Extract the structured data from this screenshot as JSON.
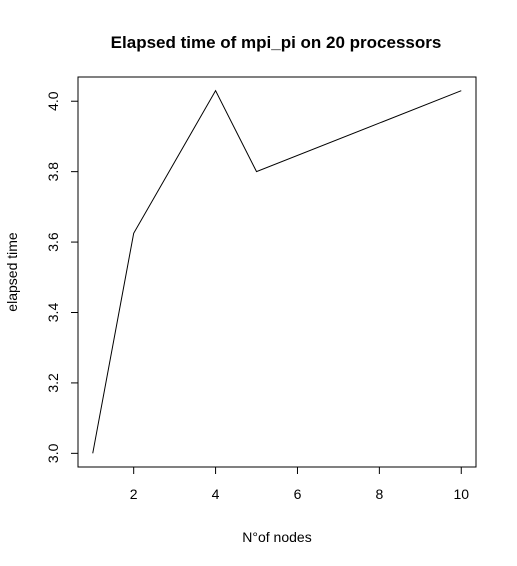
{
  "chart_data": {
    "type": "line",
    "title": "Elapsed time of mpi_pi on 20 processors",
    "xlabel": "N°of nodes",
    "ylabel": "elapsed time",
    "x": [
      1,
      2,
      4,
      5,
      10
    ],
    "y": [
      3.0,
      3.625,
      4.03,
      3.8,
      4.03
    ],
    "xticks": [
      2,
      4,
      6,
      8,
      10
    ],
    "yticks": [
      3.0,
      3.2,
      3.4,
      3.6,
      3.8,
      4.0
    ],
    "ytick_labels": [
      "3.0",
      "3.2",
      "3.4",
      "3.6",
      "3.8",
      "4.0"
    ],
    "xlim": [
      0.64,
      10.36
    ],
    "ylim": [
      2.9612,
      4.0688
    ],
    "grid": false,
    "line_color": "#000000"
  }
}
